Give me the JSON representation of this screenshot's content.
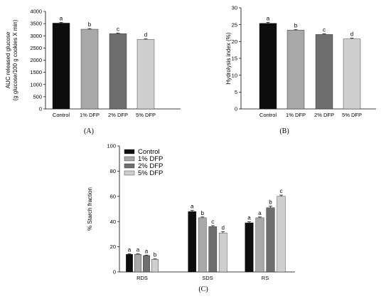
{
  "chart_data": [
    {
      "type": "bar",
      "panel_label": "(A)",
      "categories": [
        "Control",
        "1% DFP",
        "2% DFP",
        "5% DFP"
      ],
      "values": [
        3520,
        3270,
        3090,
        2850
      ],
      "errors": [
        30,
        25,
        20,
        20
      ],
      "significance": [
        "a",
        "b",
        "c",
        "d"
      ],
      "colors": [
        "#0d0d0d",
        "#a8a8a8",
        "#6e6e6e",
        "#cfcfcf"
      ],
      "ylabel": "AUC released glucose",
      "ylabel2": "(g glucose/100 g cookies X min)",
      "ylim": [
        0,
        4000
      ],
      "yticks": [
        0,
        500,
        1000,
        1500,
        2000,
        2500,
        3000,
        3500,
        4000
      ]
    },
    {
      "type": "bar",
      "panel_label": "(B)",
      "categories": [
        "Control",
        "1% DFP",
        "2% DFP",
        "5% DFP"
      ],
      "values": [
        25.4,
        23.4,
        22.1,
        20.8
      ],
      "errors": [
        0.3,
        0.2,
        0.2,
        0.2
      ],
      "significance": [
        "a",
        "b",
        "c",
        "d"
      ],
      "colors": [
        "#0d0d0d",
        "#a8a8a8",
        "#6e6e6e",
        "#cfcfcf"
      ],
      "ylabel": "Hydrolysis index (%)",
      "ylim": [
        0,
        30
      ],
      "yticks": [
        0,
        5,
        10,
        15,
        20,
        25,
        30
      ]
    },
    {
      "type": "bar",
      "panel_label": "(C)",
      "categories": [
        "RDS",
        "SDS",
        "RS"
      ],
      "series": [
        {
          "name": "Control",
          "values": [
            14,
            48,
            39
          ],
          "errors": [
            0.5,
            0.8,
            0.8
          ],
          "significance": [
            "a",
            "a",
            "a"
          ],
          "color": "#0d0d0d"
        },
        {
          "name": "1% DFP",
          "values": [
            14,
            43,
            43
          ],
          "errors": [
            0.4,
            0.6,
            0.6
          ],
          "significance": [
            "a",
            "b",
            "a"
          ],
          "color": "#a8a8a8"
        },
        {
          "name": "2% DFP",
          "values": [
            13,
            36,
            51
          ],
          "errors": [
            0.4,
            0.8,
            1.2
          ],
          "significance": [
            "a",
            "c",
            "b"
          ],
          "color": "#6e6e6e"
        },
        {
          "name": "5% DFP",
          "values": [
            10,
            31,
            60
          ],
          "errors": [
            0.4,
            0.9,
            1.0
          ],
          "significance": [
            "b",
            "d",
            "c"
          ],
          "color": "#cfcfcf"
        }
      ],
      "ylabel": "% Starch fraction",
      "ylim": [
        0,
        100
      ],
      "yticks": [
        0,
        20,
        40,
        60,
        80,
        100
      ],
      "legend_position": "top-left"
    }
  ]
}
